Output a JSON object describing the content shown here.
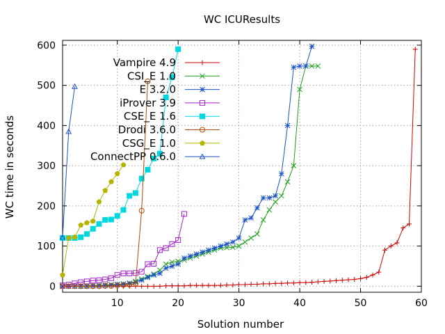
{
  "chart_data": {
    "type": "line",
    "title": "WC ICUResults",
    "xlabel": "Solution number",
    "ylabel": "WC time in seconds",
    "xlim": [
      1,
      60
    ],
    "ylim": [
      -15,
      612
    ],
    "xticks": [
      10,
      20,
      30,
      40,
      50,
      60
    ],
    "yticks": [
      0,
      100,
      200,
      300,
      400,
      500,
      600
    ],
    "grid": true,
    "legend_position": "top-left",
    "series": [
      {
        "name": "Vampire 4.9",
        "color": "#cc0000",
        "marker": "plus",
        "x": [
          1,
          2,
          3,
          4,
          5,
          6,
          7,
          8,
          9,
          10,
          11,
          12,
          13,
          14,
          15,
          16,
          17,
          18,
          19,
          20,
          21,
          22,
          23,
          24,
          25,
          26,
          27,
          28,
          29,
          30,
          31,
          32,
          33,
          34,
          35,
          36,
          37,
          38,
          39,
          40,
          41,
          42,
          43,
          44,
          45,
          46,
          47,
          48,
          49,
          50,
          51,
          52,
          53,
          54,
          55,
          56,
          57,
          58,
          59
        ],
        "y": [
          0,
          0,
          0,
          0,
          0,
          0,
          0,
          0,
          0,
          0,
          0,
          0,
          0,
          0,
          0,
          0,
          0,
          1,
          1,
          1,
          1,
          2,
          2,
          2,
          2,
          2,
          2,
          3,
          3,
          4,
          4,
          5,
          5,
          6,
          6,
          7,
          7,
          8,
          8,
          9,
          9,
          10,
          11,
          12,
          13,
          14,
          15,
          16,
          17,
          19,
          22,
          28,
          35,
          90,
          100,
          108,
          145,
          155,
          590
        ]
      },
      {
        "name": "CSI_E 1.0",
        "color": "#1aa01a",
        "marker": "x",
        "x": [
          1,
          2,
          3,
          4,
          5,
          6,
          7,
          8,
          9,
          10,
          11,
          12,
          13,
          14,
          15,
          16,
          17,
          18,
          19,
          20,
          21,
          22,
          23,
          24,
          25,
          26,
          27,
          28,
          29,
          30,
          31,
          32,
          33,
          34,
          35,
          36,
          37,
          38,
          39,
          40,
          41,
          42,
          43
        ],
        "y": [
          0,
          0,
          0,
          0,
          1,
          1,
          2,
          3,
          4,
          5,
          6,
          8,
          12,
          18,
          24,
          30,
          40,
          55,
          60,
          62,
          65,
          70,
          75,
          80,
          85,
          90,
          95,
          96,
          97,
          100,
          110,
          120,
          130,
          165,
          190,
          210,
          225,
          260,
          300,
          490,
          548,
          548,
          548
        ]
      },
      {
        "name": "E 3.2.0",
        "color": "#1a50c8",
        "marker": "star",
        "x": [
          1,
          2,
          3,
          4,
          5,
          6,
          7,
          8,
          9,
          10,
          11,
          12,
          13,
          14,
          15,
          16,
          17,
          18,
          19,
          20,
          21,
          22,
          23,
          24,
          25,
          26,
          27,
          28,
          29,
          30,
          31,
          32,
          33,
          34,
          35,
          36,
          37,
          38,
          39,
          40,
          41,
          42
        ],
        "y": [
          0,
          0,
          0,
          0,
          0,
          1,
          1,
          2,
          3,
          4,
          5,
          7,
          10,
          15,
          22,
          28,
          32,
          45,
          50,
          55,
          70,
          75,
          80,
          85,
          90,
          95,
          100,
          105,
          110,
          120,
          165,
          170,
          195,
          220,
          220,
          225,
          280,
          400,
          545,
          548,
          548,
          597
        ]
      },
      {
        "name": "iProver 3.9",
        "color": "#a020c8",
        "marker": "square-open",
        "x": [
          1,
          2,
          3,
          4,
          5,
          6,
          7,
          8,
          9,
          10,
          11,
          12,
          13,
          14,
          15,
          16,
          17,
          18,
          19,
          20,
          21
        ],
        "y": [
          2,
          4,
          7,
          10,
          12,
          14,
          15,
          17,
          20,
          28,
          32,
          32,
          33,
          36,
          55,
          56,
          90,
          95,
          105,
          115,
          180
        ]
      },
      {
        "name": "CSE_E 1.6",
        "color": "#00d8e0",
        "marker": "square",
        "x": [
          1,
          2,
          3,
          4,
          5,
          6,
          7,
          8,
          9,
          10,
          11,
          12,
          13,
          14,
          15,
          16,
          17,
          18,
          19,
          20
        ],
        "y": [
          120,
          120,
          120,
          122,
          130,
          143,
          155,
          165,
          166,
          175,
          190,
          225,
          232,
          268,
          290,
          318,
          330,
          470,
          520,
          590
        ]
      },
      {
        "name": "Drodi 3.6.0",
        "color": "#b04a00",
        "marker": "circle-open",
        "x": [
          1,
          2,
          3,
          4,
          5,
          6,
          7,
          8,
          9,
          10,
          11,
          12,
          13,
          14,
          15
        ],
        "y": [
          0,
          0,
          0,
          0,
          0,
          0,
          0,
          1,
          1,
          2,
          3,
          4,
          6,
          188,
          510
        ]
      },
      {
        "name": "CSG_E 1.0",
        "color": "#b4b400",
        "marker": "pentagon",
        "x": [
          1,
          2,
          3,
          4,
          5,
          6,
          7,
          8,
          9,
          10,
          11
        ],
        "y": [
          28,
          120,
          122,
          152,
          158,
          162,
          210,
          238,
          260,
          280,
          302
        ]
      },
      {
        "name": "ConnectPP 0.6.0",
        "color": "#1a50c8",
        "marker": "triangle-open",
        "x": [
          1,
          2,
          3
        ],
        "y": [
          122,
          385,
          497
        ]
      }
    ]
  }
}
